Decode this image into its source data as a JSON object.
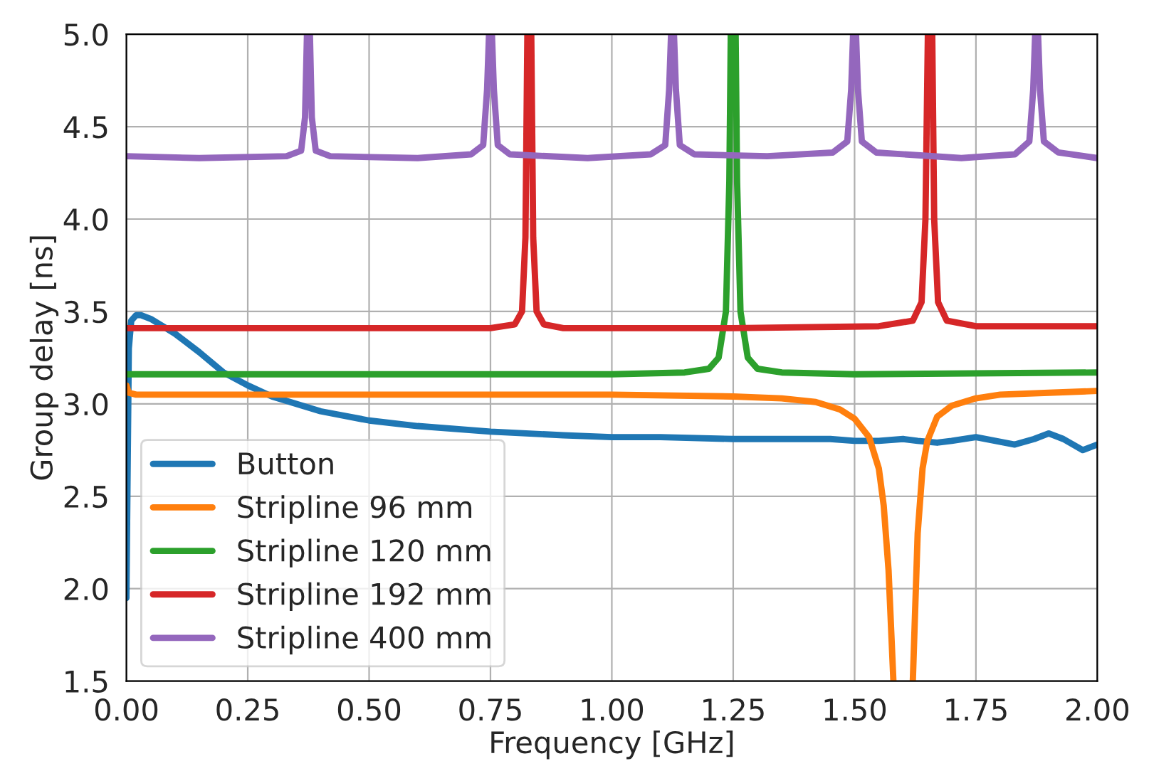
{
  "chart_data": {
    "type": "line",
    "xlabel": "Frequency [GHz]",
    "ylabel": "Group delay [ns]",
    "xlim": [
      0.0,
      2.0
    ],
    "xticks": [
      {
        "value": 0.0,
        "label": "0.00"
      },
      {
        "value": 0.25,
        "label": "0.25"
      },
      {
        "value": 0.5,
        "label": "0.50"
      },
      {
        "value": 0.75,
        "label": "0.75"
      },
      {
        "value": 1.0,
        "label": "1.00"
      },
      {
        "value": 1.25,
        "label": "1.25"
      },
      {
        "value": 1.5,
        "label": "1.50"
      },
      {
        "value": 1.75,
        "label": "1.75"
      },
      {
        "value": 2.0,
        "label": "2.00"
      }
    ],
    "ylim": [
      1.5,
      5.0
    ],
    "yticks": [
      {
        "value": 1.5,
        "label": "1.5"
      },
      {
        "value": 2.0,
        "label": "2.0"
      },
      {
        "value": 2.5,
        "label": "2.5"
      },
      {
        "value": 3.0,
        "label": "3.0"
      },
      {
        "value": 3.5,
        "label": "3.5"
      },
      {
        "value": 4.0,
        "label": "4.0"
      },
      {
        "value": 4.5,
        "label": "4.5"
      },
      {
        "value": 5.0,
        "label": "5.0"
      }
    ],
    "grid": true,
    "legend": "bottom left",
    "line_style": "solid",
    "marker": "none",
    "series": [
      {
        "name": "Button",
        "color": "#1f77b4",
        "x": [
          0.0,
          0.005,
          0.01,
          0.02,
          0.03,
          0.05,
          0.1,
          0.15,
          0.2,
          0.25,
          0.3,
          0.4,
          0.5,
          0.6,
          0.75,
          0.9,
          1.0,
          1.1,
          1.25,
          1.35,
          1.4,
          1.45,
          1.5,
          1.55,
          1.6,
          1.63,
          1.67,
          1.7,
          1.75,
          1.79,
          1.83,
          1.87,
          1.9,
          1.93,
          1.97,
          2.0
        ],
        "values": [
          1.95,
          3.3,
          3.45,
          3.48,
          3.48,
          3.46,
          3.38,
          3.28,
          3.17,
          3.1,
          3.04,
          2.96,
          2.91,
          2.88,
          2.85,
          2.83,
          2.82,
          2.82,
          2.81,
          2.81,
          2.81,
          2.81,
          2.8,
          2.8,
          2.81,
          2.8,
          2.79,
          2.8,
          2.82,
          2.8,
          2.78,
          2.81,
          2.84,
          2.81,
          2.75,
          2.78
        ]
      },
      {
        "name": "Stripline 96 mm",
        "color": "#ff7f0e",
        "x": [
          0.0,
          0.005,
          0.02,
          0.5,
          1.0,
          1.25,
          1.35,
          1.42,
          1.47,
          1.5,
          1.53,
          1.55,
          1.56,
          1.57,
          1.58,
          1.59,
          1.62,
          1.63,
          1.64,
          1.65,
          1.67,
          1.7,
          1.75,
          1.8,
          1.9,
          2.0
        ],
        "values": [
          3.1,
          3.06,
          3.05,
          3.05,
          3.05,
          3.04,
          3.03,
          3.01,
          2.97,
          2.92,
          2.82,
          2.65,
          2.45,
          2.1,
          1.5,
          null,
          1.5,
          2.3,
          2.65,
          2.8,
          2.93,
          2.99,
          3.03,
          3.05,
          3.06,
          3.07
        ]
      },
      {
        "name": "Stripline 120 mm",
        "color": "#2ca02c",
        "x": [
          0.0,
          0.5,
          1.0,
          1.15,
          1.2,
          1.22,
          1.235,
          1.242,
          1.245,
          1.25,
          1.255,
          1.258,
          1.265,
          1.28,
          1.3,
          1.35,
          1.5,
          2.0
        ],
        "values": [
          3.16,
          3.16,
          3.16,
          3.17,
          3.19,
          3.25,
          3.5,
          4.2,
          5.0,
          null,
          5.0,
          4.2,
          3.5,
          3.25,
          3.19,
          3.17,
          3.16,
          3.17
        ]
      },
      {
        "name": "Stripline 192 mm",
        "color": "#d62728",
        "x": [
          0.0,
          0.5,
          0.75,
          0.8,
          0.815,
          0.822,
          0.826,
          0.83,
          0.834,
          0.838,
          0.845,
          0.86,
          0.9,
          1.25,
          1.55,
          1.62,
          1.638,
          1.646,
          1.651,
          1.655,
          1.66,
          1.664,
          1.672,
          1.69,
          1.75,
          2.0
        ],
        "values": [
          3.41,
          3.41,
          3.41,
          3.43,
          3.5,
          3.9,
          5.0,
          null,
          5.0,
          3.9,
          3.5,
          3.43,
          3.41,
          3.41,
          3.42,
          3.45,
          3.55,
          4.0,
          5.0,
          null,
          5.0,
          4.0,
          3.55,
          3.45,
          3.42,
          3.42
        ]
      },
      {
        "name": "Stripline 400 mm",
        "color": "#9467bd",
        "x": [
          0.0,
          0.15,
          0.33,
          0.36,
          0.368,
          0.372,
          0.375,
          0.378,
          0.382,
          0.39,
          0.42,
          0.6,
          0.71,
          0.735,
          0.743,
          0.747,
          0.75,
          0.753,
          0.757,
          0.765,
          0.79,
          0.95,
          1.08,
          1.11,
          1.118,
          1.122,
          1.125,
          1.128,
          1.132,
          1.14,
          1.17,
          1.32,
          1.455,
          1.485,
          1.493,
          1.497,
          1.5,
          1.503,
          1.507,
          1.515,
          1.545,
          1.72,
          1.83,
          1.86,
          1.868,
          1.872,
          1.875,
          1.878,
          1.882,
          1.89,
          1.92,
          2.0
        ],
        "values": [
          4.34,
          4.33,
          4.34,
          4.37,
          4.55,
          5.0,
          null,
          5.0,
          4.55,
          4.37,
          4.34,
          4.33,
          4.35,
          4.4,
          4.7,
          5.0,
          null,
          5.0,
          4.7,
          4.4,
          4.35,
          4.33,
          4.35,
          4.4,
          4.7,
          5.0,
          null,
          5.0,
          4.7,
          4.4,
          4.35,
          4.34,
          4.36,
          4.42,
          4.7,
          5.0,
          null,
          5.0,
          4.7,
          4.42,
          4.36,
          4.33,
          4.35,
          4.42,
          4.7,
          5.0,
          null,
          5.0,
          4.7,
          4.42,
          4.36,
          4.33
        ]
      }
    ]
  }
}
